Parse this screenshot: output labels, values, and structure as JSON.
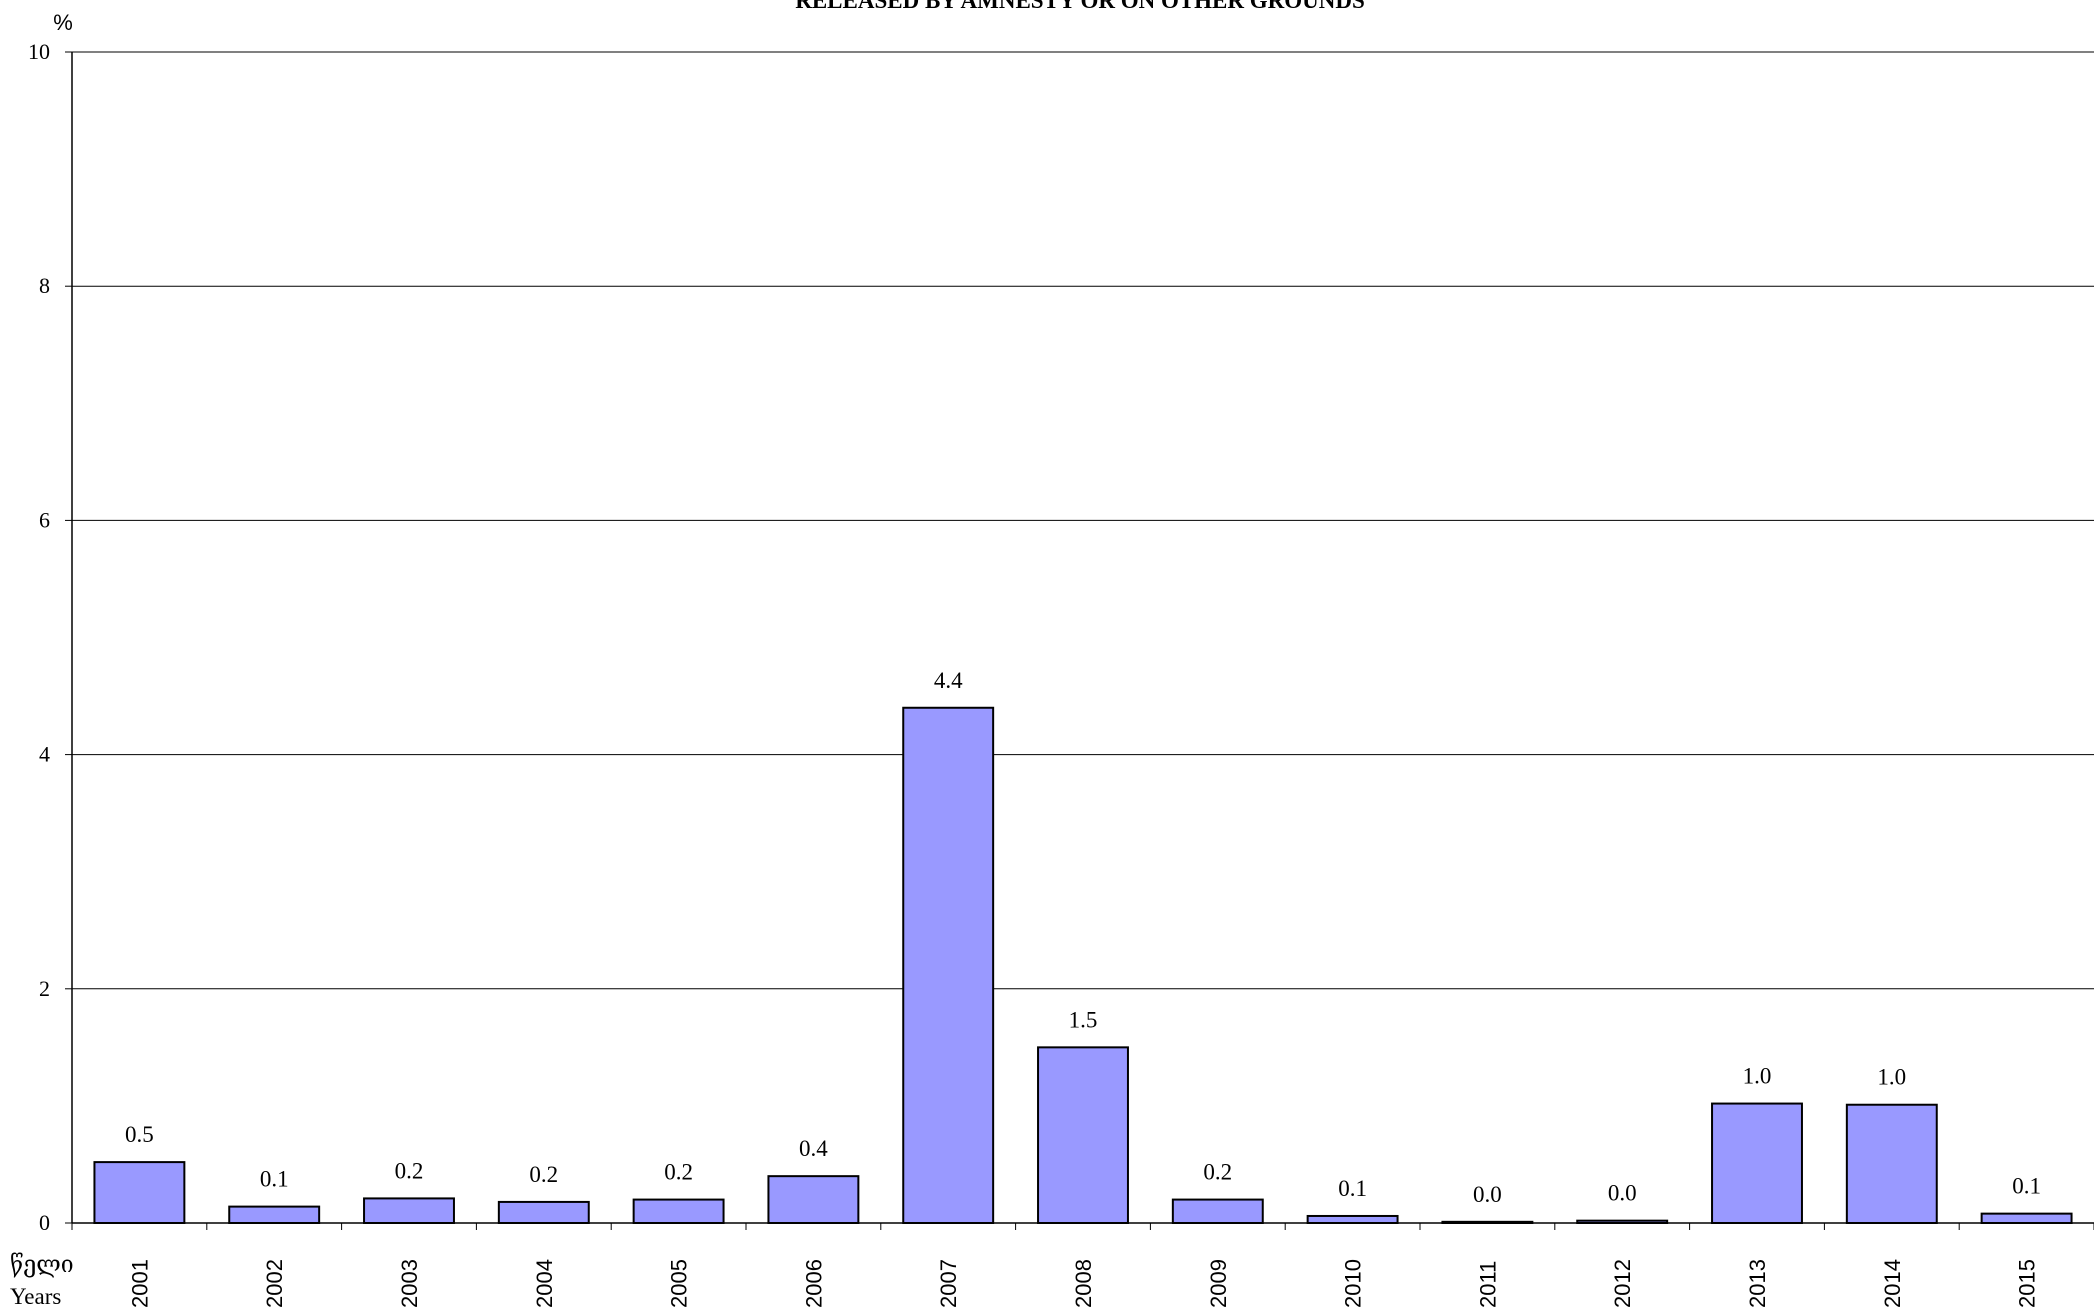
{
  "chart_data": {
    "type": "bar",
    "title": "RELEASED BY AMNESTY OR ON OTHER GROUNDS",
    "y_unit_label": "%",
    "x_label_georgian": "წელი",
    "x_label": "Years",
    "categories": [
      "2001",
      "2002",
      "2003",
      "2004",
      "2005",
      "2006",
      "2007",
      "2008",
      "2009",
      "2010",
      "2011",
      "2012",
      "2013",
      "2014",
      "2015"
    ],
    "values": [
      0.52,
      0.14,
      0.21,
      0.18,
      0.2,
      0.4,
      4.4,
      1.5,
      0.2,
      0.06,
      0.01,
      0.02,
      1.02,
      1.01,
      0.08
    ],
    "data_labels": [
      "0.5",
      "0.1",
      "0.2",
      "0.2",
      "0.2",
      "0.4",
      "4.4",
      "1.5",
      "0.2",
      "0.1",
      "0.0",
      "0.0",
      "1.0",
      "1.0",
      "0.1"
    ],
    "ylim": [
      0,
      10
    ],
    "yticks": [
      0,
      2,
      4,
      6,
      8,
      10
    ],
    "grid": true,
    "legend": "none",
    "bar_color": "#9999ff",
    "bar_edge_color": "#000000"
  }
}
